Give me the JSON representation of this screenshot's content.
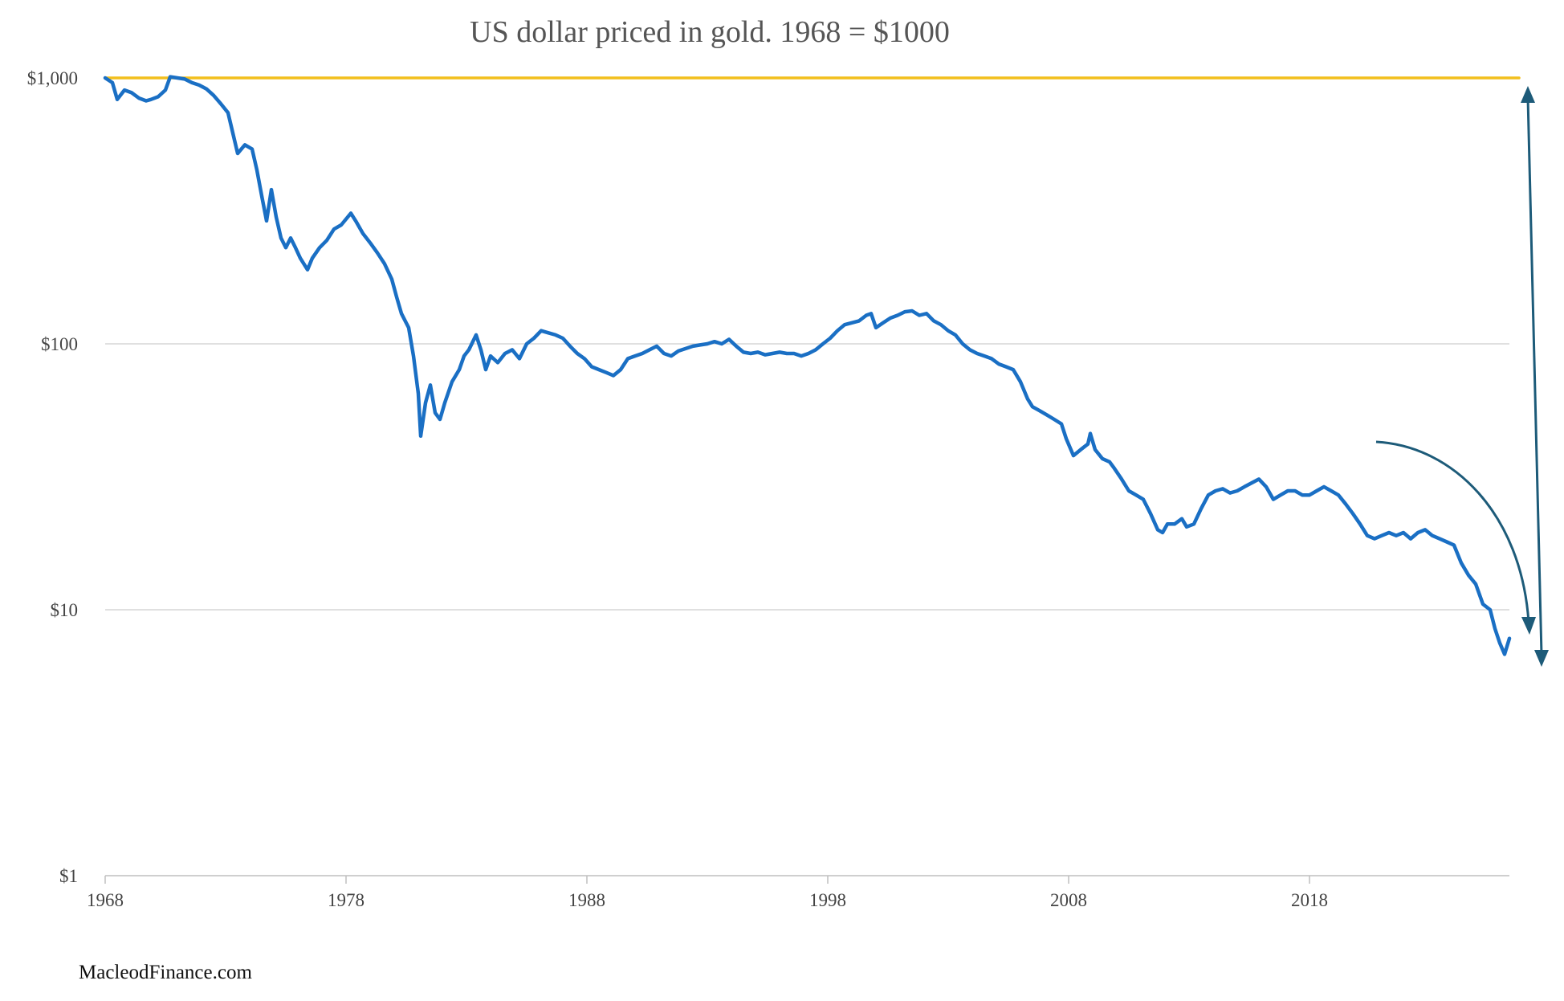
{
  "footer": {
    "source": "MacleodFinance.com"
  },
  "colors": {
    "series": "#1a6fc4",
    "reference": "#f2bf1d",
    "arrow": "#1d5b79",
    "grid": "#d6d6d6"
  },
  "chart_data": {
    "type": "line",
    "title": "US dollar priced in gold. 1968 = $1000",
    "xlabel": "",
    "ylabel": "",
    "yscale": "log",
    "ylim": [
      1,
      1000
    ],
    "xlim": [
      1968,
      2026.5
    ],
    "x_ticks": [
      {
        "value": 1968,
        "label": "1968"
      },
      {
        "value": 1978,
        "label": "1978"
      },
      {
        "value": 1988,
        "label": "1988"
      },
      {
        "value": 1998,
        "label": "1998"
      },
      {
        "value": 2008,
        "label": "2008"
      },
      {
        "value": 2018,
        "label": "2018"
      }
    ],
    "y_ticks": [
      {
        "value": 1000,
        "label": "$1,000"
      },
      {
        "value": 100,
        "label": "$100"
      },
      {
        "value": 10,
        "label": "$10"
      },
      {
        "value": 1,
        "label": "$1"
      }
    ],
    "grid": {
      "horizontal": true,
      "vertical": false
    },
    "series": [
      {
        "points": [
          [
            1968.0,
            1000
          ],
          [
            1968.3,
            960
          ],
          [
            1968.5,
            830
          ],
          [
            1968.8,
            900
          ],
          [
            1969.1,
            880
          ],
          [
            1969.4,
            840
          ],
          [
            1969.7,
            820
          ],
          [
            1969.9,
            830
          ],
          [
            1970.2,
            850
          ],
          [
            1970.5,
            900
          ],
          [
            1970.7,
            1010
          ],
          [
            1971.0,
            1000
          ],
          [
            1971.3,
            990
          ],
          [
            1971.6,
            960
          ],
          [
            1971.9,
            940
          ],
          [
            1972.2,
            910
          ],
          [
            1972.5,
            860
          ],
          [
            1972.8,
            800
          ],
          [
            1973.1,
            740
          ],
          [
            1973.3,
            620
          ],
          [
            1973.5,
            520
          ],
          [
            1973.8,
            560
          ],
          [
            1974.1,
            540
          ],
          [
            1974.3,
            450
          ],
          [
            1974.5,
            360
          ],
          [
            1974.7,
            290
          ],
          [
            1974.9,
            380
          ],
          [
            1975.1,
            300
          ],
          [
            1975.3,
            250
          ],
          [
            1975.5,
            230
          ],
          [
            1975.7,
            250
          ],
          [
            1975.9,
            230
          ],
          [
            1976.1,
            210
          ],
          [
            1976.4,
            190
          ],
          [
            1976.6,
            210
          ],
          [
            1976.9,
            230
          ],
          [
            1977.2,
            245
          ],
          [
            1977.5,
            270
          ],
          [
            1977.8,
            280
          ],
          [
            1978.2,
            310
          ],
          [
            1978.4,
            290
          ],
          [
            1978.7,
            260
          ],
          [
            1979.0,
            240
          ],
          [
            1979.3,
            220
          ],
          [
            1979.6,
            200
          ],
          [
            1979.9,
            175
          ],
          [
            1980.1,
            150
          ],
          [
            1980.3,
            130
          ],
          [
            1980.6,
            115
          ],
          [
            1980.8,
            90
          ],
          [
            1981.0,
            65
          ],
          [
            1981.1,
            45
          ],
          [
            1981.3,
            60
          ],
          [
            1981.5,
            70
          ],
          [
            1981.7,
            55
          ],
          [
            1981.9,
            52
          ],
          [
            1982.1,
            60
          ],
          [
            1982.4,
            72
          ],
          [
            1982.7,
            80
          ],
          [
            1982.9,
            90
          ],
          [
            1983.1,
            95
          ],
          [
            1983.4,
            108
          ],
          [
            1983.6,
            95
          ],
          [
            1983.8,
            80
          ],
          [
            1984.0,
            90
          ],
          [
            1984.3,
            85
          ],
          [
            1984.6,
            92
          ],
          [
            1984.9,
            95
          ],
          [
            1985.2,
            88
          ],
          [
            1985.5,
            100
          ],
          [
            1985.8,
            105
          ],
          [
            1986.1,
            112
          ],
          [
            1986.4,
            110
          ],
          [
            1986.7,
            108
          ],
          [
            1987.0,
            105
          ],
          [
            1987.3,
            98
          ],
          [
            1987.6,
            92
          ],
          [
            1987.9,
            88
          ],
          [
            1988.2,
            82
          ],
          [
            1988.5,
            80
          ],
          [
            1988.8,
            78
          ],
          [
            1989.1,
            76
          ],
          [
            1989.4,
            80
          ],
          [
            1989.7,
            88
          ],
          [
            1990.0,
            90
          ],
          [
            1990.3,
            92
          ],
          [
            1990.6,
            95
          ],
          [
            1990.9,
            98
          ],
          [
            1991.2,
            92
          ],
          [
            1991.5,
            90
          ],
          [
            1991.8,
            94
          ],
          [
            1992.1,
            96
          ],
          [
            1992.4,
            98
          ],
          [
            1992.7,
            99
          ],
          [
            1993.0,
            100
          ],
          [
            1993.3,
            102
          ],
          [
            1993.6,
            100
          ],
          [
            1993.9,
            104
          ],
          [
            1994.2,
            98
          ],
          [
            1994.5,
            93
          ],
          [
            1994.8,
            92
          ],
          [
            1995.1,
            93
          ],
          [
            1995.4,
            91
          ],
          [
            1995.7,
            92
          ],
          [
            1996.0,
            93
          ],
          [
            1996.3,
            92
          ],
          [
            1996.6,
            92
          ],
          [
            1996.9,
            90
          ],
          [
            1997.2,
            92
          ],
          [
            1997.5,
            95
          ],
          [
            1997.8,
            100
          ],
          [
            1998.1,
            105
          ],
          [
            1998.4,
            112
          ],
          [
            1998.7,
            118
          ],
          [
            1999.0,
            120
          ],
          [
            1999.3,
            122
          ],
          [
            1999.6,
            128
          ],
          [
            1999.8,
            130
          ],
          [
            2000.0,
            115
          ],
          [
            2000.3,
            120
          ],
          [
            2000.6,
            125
          ],
          [
            2000.9,
            128
          ],
          [
            2001.2,
            132
          ],
          [
            2001.5,
            133
          ],
          [
            2001.8,
            128
          ],
          [
            2002.1,
            130
          ],
          [
            2002.4,
            122
          ],
          [
            2002.7,
            118
          ],
          [
            2003.0,
            112
          ],
          [
            2003.3,
            108
          ],
          [
            2003.6,
            100
          ],
          [
            2003.9,
            95
          ],
          [
            2004.2,
            92
          ],
          [
            2004.5,
            90
          ],
          [
            2004.8,
            88
          ],
          [
            2005.1,
            84
          ],
          [
            2005.4,
            82
          ],
          [
            2005.7,
            80
          ],
          [
            2006.0,
            72
          ],
          [
            2006.3,
            62
          ],
          [
            2006.5,
            58
          ],
          [
            2006.8,
            56
          ],
          [
            2007.1,
            54
          ],
          [
            2007.4,
            52
          ],
          [
            2007.7,
            50
          ],
          [
            2007.9,
            44
          ],
          [
            2008.2,
            38
          ],
          [
            2008.5,
            40
          ],
          [
            2008.8,
            42
          ],
          [
            2008.9,
            46
          ],
          [
            2009.1,
            40
          ],
          [
            2009.4,
            37
          ],
          [
            2009.7,
            36
          ],
          [
            2009.9,
            34
          ],
          [
            2010.2,
            31
          ],
          [
            2010.5,
            28
          ],
          [
            2010.8,
            27
          ],
          [
            2011.1,
            26
          ],
          [
            2011.4,
            23
          ],
          [
            2011.7,
            20
          ],
          [
            2011.9,
            19.5
          ],
          [
            2012.1,
            21
          ],
          [
            2012.4,
            21
          ],
          [
            2012.7,
            22
          ],
          [
            2012.9,
            20.5
          ],
          [
            2013.2,
            21
          ],
          [
            2013.5,
            24
          ],
          [
            2013.8,
            27
          ],
          [
            2014.1,
            28
          ],
          [
            2014.4,
            28.5
          ],
          [
            2014.7,
            27.5
          ],
          [
            2015.0,
            28
          ],
          [
            2015.3,
            29
          ],
          [
            2015.6,
            30
          ],
          [
            2015.9,
            31
          ],
          [
            2016.2,
            29
          ],
          [
            2016.5,
            26
          ],
          [
            2016.8,
            27
          ],
          [
            2017.1,
            28
          ],
          [
            2017.4,
            28
          ],
          [
            2017.7,
            27
          ],
          [
            2018.0,
            27
          ],
          [
            2018.3,
            28
          ],
          [
            2018.6,
            29
          ],
          [
            2018.9,
            28
          ],
          [
            2019.2,
            27
          ],
          [
            2019.5,
            25
          ],
          [
            2019.8,
            23
          ],
          [
            2020.1,
            21
          ],
          [
            2020.4,
            19
          ],
          [
            2020.7,
            18.5
          ],
          [
            2021.0,
            19
          ],
          [
            2021.3,
            19.5
          ],
          [
            2021.6,
            19
          ],
          [
            2021.9,
            19.5
          ],
          [
            2022.2,
            18.5
          ],
          [
            2022.5,
            19.5
          ],
          [
            2022.8,
            20
          ],
          [
            2023.1,
            19
          ],
          [
            2023.4,
            18.5
          ],
          [
            2023.7,
            18
          ],
          [
            2024.0,
            17.5
          ],
          [
            2024.3,
            15
          ],
          [
            2024.6,
            13.5
          ],
          [
            2024.9,
            12.5
          ],
          [
            2025.2,
            10.5
          ],
          [
            2025.5,
            10
          ],
          [
            2025.7,
            8.5
          ],
          [
            2025.9,
            7.5
          ],
          [
            2026.1,
            6.8
          ],
          [
            2026.3,
            7.8
          ]
        ]
      },
      {
        "points": [
          [
            1968.0,
            1000
          ],
          [
            2026.7,
            1000
          ]
        ]
      }
    ]
  }
}
